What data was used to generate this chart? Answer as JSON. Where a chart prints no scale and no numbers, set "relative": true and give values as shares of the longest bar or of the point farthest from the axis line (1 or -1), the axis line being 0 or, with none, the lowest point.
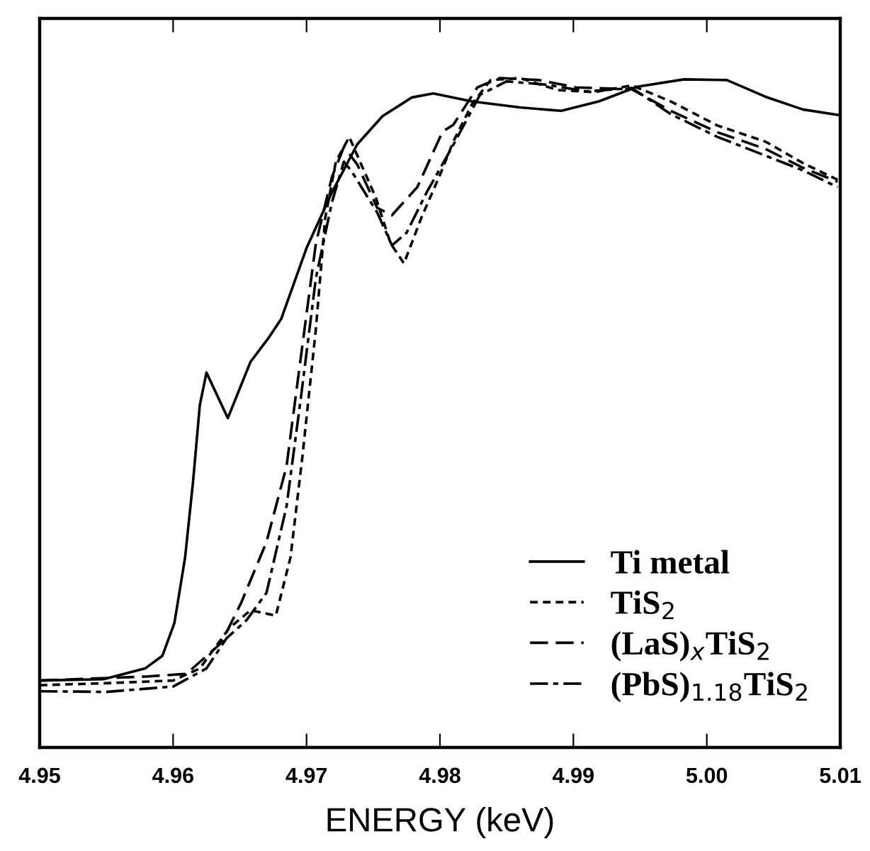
{
  "chart_data": {
    "type": "line",
    "relative": true,
    "xlabel": "ENERGY (keV)",
    "xlim": [
      4.95,
      5.01
    ],
    "xticks": [
      4.95,
      4.96,
      4.97,
      4.98,
      4.99,
      {
        "value": 5.0,
        "label": "5.00"
      },
      5.01
    ],
    "legend": "bottom right",
    "grid": false,
    "series": [
      {
        "name": "Ti metal",
        "color": "#000000",
        "line_style": "solid",
        "x": [
          4.95,
          4.9548,
          4.9579,
          4.9592,
          4.9601,
          4.9609,
          4.9615,
          4.962,
          4.9625,
          4.9641,
          4.9658,
          4.9672,
          4.9681,
          4.97,
          4.9719,
          4.9738,
          4.9757,
          4.9779,
          4.9795,
          4.9824,
          4.986,
          4.9891,
          4.9919,
          4.9948,
          4.9983,
          5.0015,
          5.0044,
          5.0072,
          5.0098
        ],
        "values": [
          0.1,
          0.102,
          0.118,
          0.137,
          0.186,
          0.284,
          0.398,
          0.511,
          0.56,
          0.492,
          0.576,
          0.613,
          0.64,
          0.746,
          0.829,
          0.901,
          0.943,
          0.971,
          0.977,
          0.965,
          0.956,
          0.951,
          0.965,
          0.987,
          0.998,
          0.997,
          0.972,
          0.953,
          0.945
        ]
      },
      {
        "name": "TiS$_{2}$",
        "color": "#000000",
        "line_style": "dotted",
        "x": [
          4.95,
          4.955,
          4.96,
          4.962,
          4.9642,
          4.9658,
          4.9677,
          4.9688,
          4.9697,
          4.9707,
          4.9714,
          4.9722,
          4.9732,
          4.9752,
          4.9763,
          4.9773,
          4.9786,
          4.9801,
          4.981,
          4.9824,
          4.9838,
          4.986,
          4.9888,
          4.9916,
          4.9944,
          4.9973,
          5.0008,
          5.0044,
          5.0072,
          5.0098
        ],
        "values": [
          0.093,
          0.096,
          0.1,
          0.118,
          0.178,
          0.205,
          0.197,
          0.284,
          0.436,
          0.625,
          0.791,
          0.875,
          0.912,
          0.821,
          0.753,
          0.723,
          0.791,
          0.86,
          0.905,
          0.961,
          0.997,
          1.0,
          0.982,
          0.979,
          0.989,
          0.965,
          0.929,
          0.905,
          0.873,
          0.848
        ]
      },
      {
        "name": "(LaS)$_{x}$TiS$_{2}$",
        "color": "#000000",
        "line_style": "dashed",
        "x": [
          4.95,
          4.958,
          4.961,
          4.9636,
          4.9651,
          4.967,
          4.9685,
          4.9696,
          4.9707,
          4.9719,
          4.9728,
          4.9738,
          4.9753,
          4.9764,
          4.9783,
          4.9802,
          4.981,
          4.9828,
          4.9845,
          4.9874,
          4.9902,
          4.9944,
          4.9973,
          5.0008,
          5.0044,
          5.0072,
          5.0098
        ],
        "values": [
          0.1,
          0.106,
          0.11,
          0.156,
          0.216,
          0.307,
          0.42,
          0.587,
          0.753,
          0.852,
          0.897,
          0.871,
          0.806,
          0.795,
          0.837,
          0.92,
          0.93,
          0.986,
          1.0,
          0.997,
          0.986,
          0.983,
          0.951,
          0.919,
          0.894,
          0.866,
          0.845
        ]
      },
      {
        "name": "(PbS)$_{1.18}$TiS$_{2}$",
        "color": "#000000",
        "line_style": "dashdot",
        "x": [
          4.95,
          4.955,
          4.96,
          4.9625,
          4.964,
          4.9655,
          4.967,
          4.9685,
          4.9696,
          4.9707,
          4.9719,
          4.9728,
          4.9734,
          4.9753,
          4.9764,
          4.9775,
          4.979,
          4.981,
          4.983,
          4.985,
          4.988,
          4.991,
          4.9944,
          4.9973,
          5.0008,
          5.0044,
          5.0072,
          5.0098
        ],
        "values": [
          0.084,
          0.083,
          0.091,
          0.118,
          0.163,
          0.19,
          0.231,
          0.36,
          0.526,
          0.701,
          0.814,
          0.875,
          0.86,
          0.799,
          0.75,
          0.769,
          0.829,
          0.9,
          0.975,
          0.995,
          0.99,
          0.98,
          0.985,
          0.946,
          0.912,
          0.884,
          0.862,
          0.837
        ]
      }
    ]
  }
}
